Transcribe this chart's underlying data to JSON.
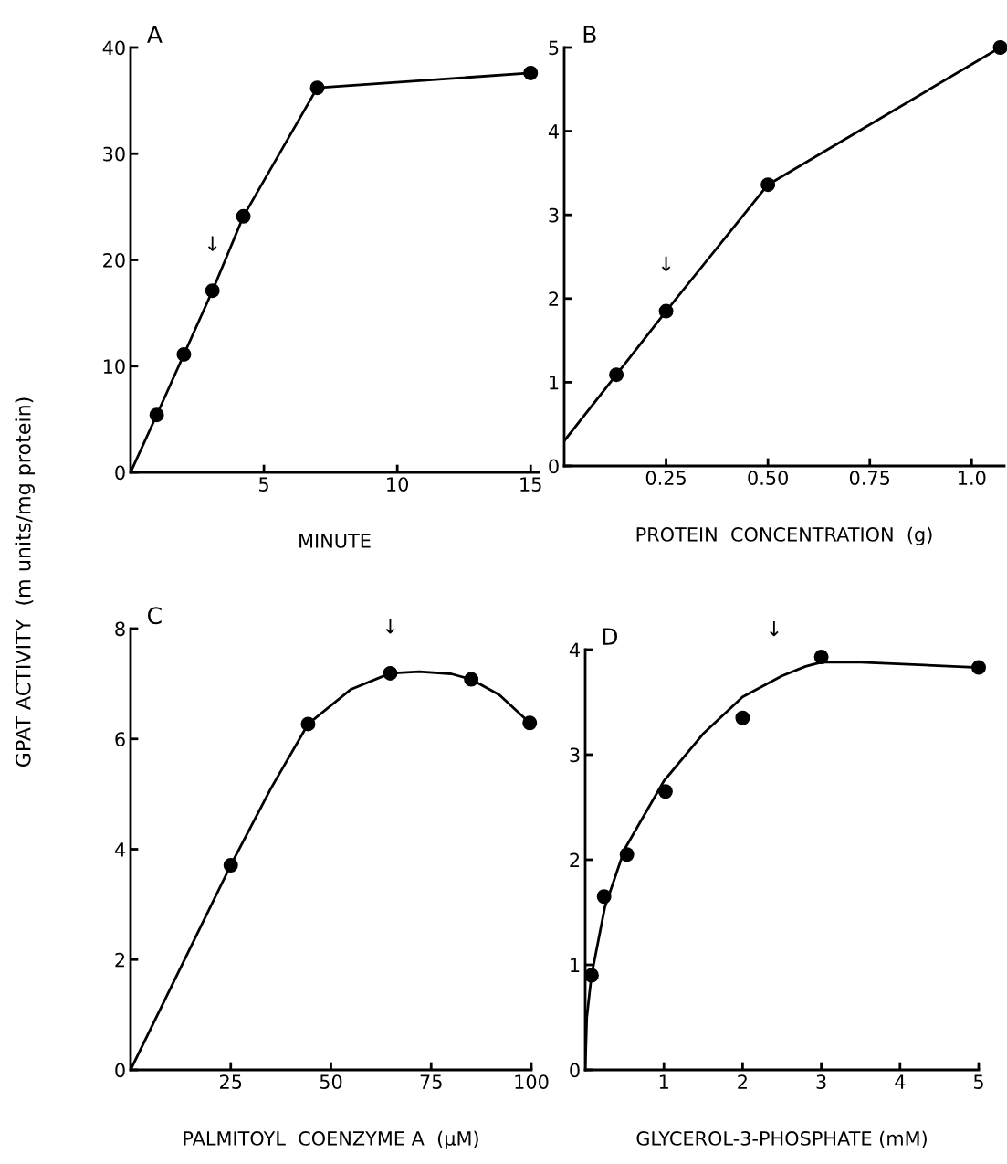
{
  "chart_data": [
    {
      "type": "scatter",
      "xlabel": "MINUTE",
      "ylabel": "GPAT ACTIVITY  (m units/mg protein)",
      "xlim": [
        0,
        15.3
      ],
      "ylim": [
        0,
        40
      ],
      "xticks": [
        5,
        10,
        15
      ],
      "yticks": [
        0,
        10,
        20,
        30,
        40
      ],
      "grid": false,
      "legend": false,
      "annotations": [
        "A",
        {
          "text": "↓",
          "x": 3.07,
          "y": 17.1
        }
      ],
      "series": [
        {
          "type": "line",
          "color": "#000000",
          "marker": "none",
          "line_style": "solid",
          "x": [
            0,
            0.98,
            2.0,
            3.07,
            4.23,
            7.0,
            15.0
          ],
          "values": [
            0,
            5.4,
            11.1,
            17.1,
            24.1,
            36.2,
            37.6
          ]
        },
        {
          "color": "#000000",
          "marker": "circle",
          "x": [
            0.98,
            2.0,
            3.07,
            4.23,
            7.0,
            15.0
          ],
          "values": [
            5.4,
            11.1,
            17.1,
            24.1,
            36.2,
            37.6
          ]
        }
      ]
    },
    {
      "type": "scatter",
      "xlabel": "PROTEIN  CONCENTRATION  (g)",
      "xlim": [
        0,
        1.08
      ],
      "ylim": [
        0,
        5
      ],
      "xticks": [
        {
          "value": 0.25,
          "label": "0.25"
        },
        {
          "value": 0.5,
          "label": "0.50"
        },
        {
          "value": 0.75,
          "label": "0.75"
        },
        {
          "value": 1.0,
          "label": "1.0"
        }
      ],
      "yticks": [
        0,
        1,
        2,
        3,
        4,
        5
      ],
      "grid": false,
      "legend": false,
      "annotations": [
        "B",
        {
          "text": "↓",
          "x": 0.25,
          "y": 1.85
        }
      ],
      "series": [
        {
          "type": "line",
          "color": "#000000",
          "marker": "none",
          "line_style": "solid",
          "x": [
            0,
            0.128,
            0.25,
            0.5,
            1.07
          ],
          "values": [
            0.3,
            1.09,
            1.85,
            3.36,
            5.0
          ]
        },
        {
          "color": "#000000",
          "marker": "circle",
          "x": [
            0.128,
            0.25,
            0.5,
            1.07
          ],
          "values": [
            1.09,
            1.85,
            3.36,
            5.0
          ]
        }
      ]
    },
    {
      "type": "scatter",
      "xlabel": "PALMITOYL  COENZYME A  (μM)",
      "xlim": [
        0,
        100
      ],
      "ylim": [
        0,
        8
      ],
      "xticks": [
        25,
        50,
        75,
        100
      ],
      "yticks": [
        0,
        2,
        4,
        6,
        8
      ],
      "grid": false,
      "legend": false,
      "annotations": [
        "C",
        {
          "text": "↓",
          "x": 64.8,
          "y": 7.19
        }
      ],
      "series": [
        {
          "type": "line",
          "color": "#000000",
          "marker": "none",
          "line_style": "solid",
          "x": [
            0,
            25,
            35,
            44.3,
            55,
            64.8,
            72,
            80,
            85,
            92,
            99.6
          ],
          "values": [
            0,
            3.71,
            5.1,
            6.27,
            6.9,
            7.19,
            7.22,
            7.18,
            7.08,
            6.8,
            6.29
          ]
        },
        {
          "color": "#000000",
          "marker": "circle",
          "x": [
            25,
            44.3,
            64.8,
            85,
            99.6
          ],
          "values": [
            3.71,
            6.27,
            7.19,
            7.08,
            6.29
          ]
        }
      ]
    },
    {
      "type": "scatter",
      "xlabel": "GLYCEROL-3-PHOSPHATE (mM)",
      "xlim": [
        0,
        5
      ],
      "ylim": [
        0,
        4
      ],
      "xticks": [
        1,
        2,
        3,
        4,
        5
      ],
      "yticks": [
        0,
        1,
        2,
        3,
        4
      ],
      "grid": false,
      "legend": false,
      "annotations": [
        "D",
        {
          "text": "↓",
          "x": 2.4,
          "y": 3.75
        }
      ],
      "series": [
        {
          "type": "line",
          "color": "#000000",
          "marker": "none",
          "line_style": "solid",
          "x": [
            0,
            0.02,
            0.08,
            0.25,
            0.5,
            1.0,
            1.5,
            2.0,
            2.5,
            2.8,
            3.0,
            3.5,
            5.0
          ],
          "values": [
            0,
            0.5,
            0.9,
            1.55,
            2.1,
            2.75,
            3.2,
            3.55,
            3.75,
            3.84,
            3.88,
            3.88,
            3.83
          ]
        },
        {
          "color": "#000000",
          "marker": "circle",
          "x": [
            0.08,
            0.24,
            0.53,
            1.02,
            2.0,
            3.0,
            5.0
          ],
          "values": [
            0.9,
            1.65,
            2.05,
            2.65,
            3.35,
            3.93,
            3.83
          ]
        }
      ]
    }
  ]
}
